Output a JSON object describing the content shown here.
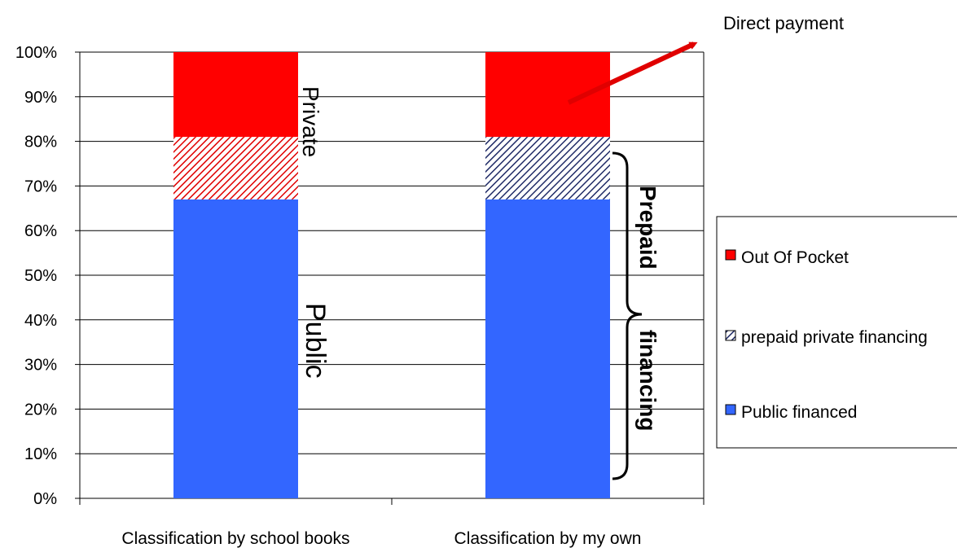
{
  "chart_data": {
    "type": "bar",
    "stacked": true,
    "categories": [
      "Classification by school books",
      "Classification by my own"
    ],
    "series": [
      {
        "name": "Public financed",
        "values": [
          67,
          67
        ],
        "color": "#3366ff",
        "pattern": "solid"
      },
      {
        "name": "prepaid private financing",
        "values": [
          14,
          14
        ],
        "colors": [
          "#e00000",
          "#1f2a66"
        ],
        "pattern": "hatch"
      },
      {
        "name": "Out Of Pocket",
        "values": [
          19,
          19
        ],
        "color": "#ff0000",
        "pattern": "solid"
      }
    ],
    "ylim": [
      0,
      100
    ],
    "yticks": [
      "0%",
      "10%",
      "20%",
      "30%",
      "40%",
      "50%",
      "60%",
      "70%",
      "80%",
      "90%",
      "100%"
    ],
    "grid": true,
    "legend_position": "right",
    "legend_order": [
      "Out Of Pocket",
      "prepaid private financing",
      "Public financed"
    ],
    "annotations": {
      "private": "Private",
      "public": "Public",
      "prepaid": "Prepaid",
      "financing": "financing",
      "direct_payment": "Direct payment"
    }
  }
}
